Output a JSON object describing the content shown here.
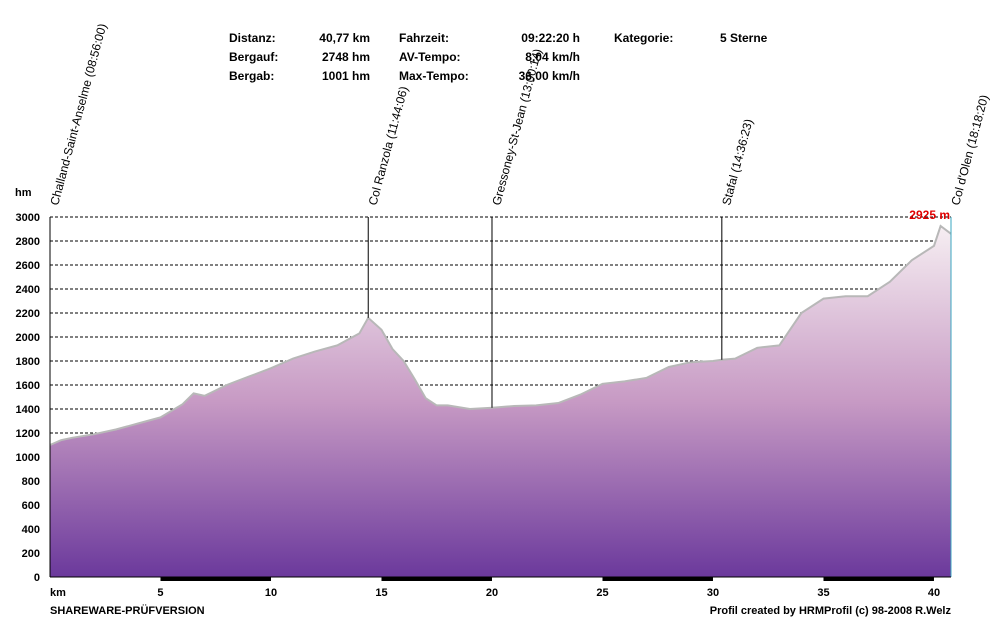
{
  "stats": {
    "distance_label": "Distanz:",
    "distance_value": "40,77 km",
    "ascent_label": "Bergauf:",
    "ascent_value": "2748 hm",
    "descent_label": "Bergab:",
    "descent_value": "1001 hm",
    "time_label": "Fahrzeit:",
    "time_value": "09:22:20 h",
    "avg_label": "AV-Tempo:",
    "avg_value": "8,04 km/h",
    "max_label": "Max-Tempo:",
    "max_value": "36,00 km/h",
    "category_label": "Kategorie:",
    "category_value": "5 Sterne"
  },
  "footer": {
    "left": "SHAREWARE-PRÜFVERSION",
    "right": "Profil created by HRMProfil (c) 98-2008 R.Welz"
  },
  "chart_data": {
    "type": "area",
    "ylabel": "hm",
    "xlabel": "km",
    "xlim": [
      0,
      40.77
    ],
    "ylim": [
      0,
      3000
    ],
    "xticks": [
      5,
      10,
      15,
      20,
      25,
      30,
      35,
      40
    ],
    "yticks": [
      0,
      200,
      400,
      600,
      800,
      1000,
      1200,
      1400,
      1600,
      1800,
      2000,
      2200,
      2400,
      2600,
      2800,
      3000
    ],
    "grid": true,
    "max_label": "2925 m",
    "waypoints": [
      {
        "name": "Challand-Saint-Anselme (08:56:00)",
        "km": 0
      },
      {
        "name": "Col Ranzola (11:44:06)",
        "km": 14.4
      },
      {
        "name": "Gressoney-St-Jean (13:00:14)",
        "km": 20.0
      },
      {
        "name": "Stafal (14:36:23)",
        "km": 30.4
      },
      {
        "name": "Col d'Olen (18:18:20)",
        "km": 40.77
      }
    ],
    "profile": {
      "x": [
        0,
        0.5,
        1,
        2,
        3,
        4,
        5,
        6,
        6.5,
        7,
        8,
        9,
        10,
        11,
        12,
        13,
        14,
        14.4,
        15,
        15.5,
        16,
        16.5,
        17,
        17.5,
        18,
        19,
        20,
        21,
        22,
        23,
        24,
        25,
        26,
        27,
        28,
        29,
        30,
        30.4,
        31,
        32,
        33,
        34,
        35,
        36,
        37,
        38,
        39,
        40,
        40.3,
        40.77
      ],
      "y": [
        1100,
        1140,
        1160,
        1190,
        1230,
        1280,
        1330,
        1440,
        1530,
        1510,
        1600,
        1670,
        1740,
        1820,
        1880,
        1930,
        2030,
        2160,
        2060,
        1900,
        1800,
        1650,
        1490,
        1430,
        1430,
        1400,
        1410,
        1425,
        1430,
        1450,
        1520,
        1610,
        1630,
        1660,
        1750,
        1790,
        1800,
        1810,
        1820,
        1910,
        1930,
        2200,
        2320,
        2340,
        2340,
        2460,
        2640,
        2760,
        2925,
        2860
      ]
    }
  }
}
